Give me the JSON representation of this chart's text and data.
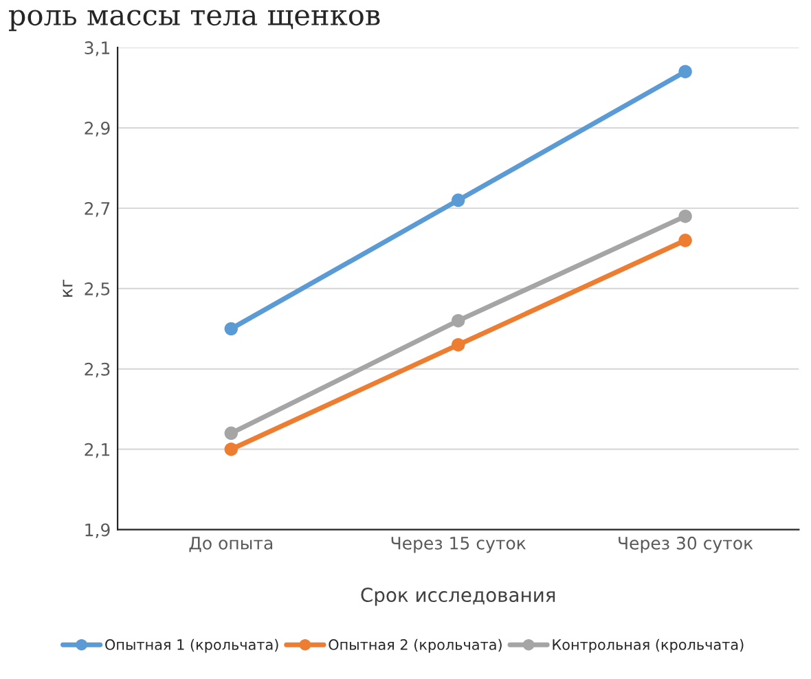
{
  "chart_data": {
    "type": "line",
    "title": "роль массы тела щенков",
    "xlabel": "Срок исследования",
    "ylabel": "кг",
    "categories": [
      "До опыта",
      "Через 15 суток",
      "Через 30 суток"
    ],
    "series": [
      {
        "name": "Опытная 1 (крольчата)",
        "color": "#5b9bd5",
        "values": [
          2.4,
          2.72,
          3.04
        ]
      },
      {
        "name": "Опытная 2 (крольчата)",
        "color": "#ed7d31",
        "values": [
          2.1,
          2.36,
          2.62
        ]
      },
      {
        "name": "Контрольная (крольчата)",
        "color": "#a5a5a5",
        "values": [
          2.14,
          2.42,
          2.68
        ]
      }
    ],
    "ylim": [
      1.9,
      3.1
    ],
    "yticks": [
      {
        "value": 1.9,
        "label": "1,9"
      },
      {
        "value": 2.1,
        "label": "2,1"
      },
      {
        "value": 2.3,
        "label": "2,3"
      },
      {
        "value": 2.5,
        "label": "2,5"
      },
      {
        "value": 2.7,
        "label": "2,7"
      },
      {
        "value": 2.9,
        "label": "2,9"
      },
      {
        "value": 3.1,
        "label": "3,1"
      }
    ],
    "grid": "y",
    "legend": "bottom",
    "marker": "circle",
    "line_style": "solid"
  }
}
